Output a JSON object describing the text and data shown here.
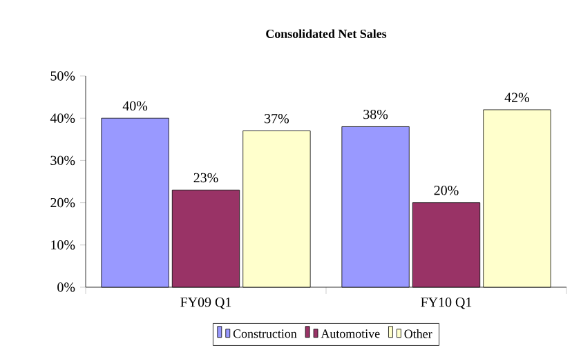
{
  "chart_data": {
    "type": "bar",
    "title": "Consolidated Net Sales",
    "categories": [
      "FY09 Q1",
      "FY10 Q1"
    ],
    "series": [
      {
        "name": "Construction",
        "color": "#9999ff",
        "values": [
          40,
          38
        ],
        "value_labels": [
          "40%",
          "38%"
        ]
      },
      {
        "name": "Automotive",
        "color": "#993366",
        "values": [
          23,
          20
        ],
        "value_labels": [
          "23%",
          "20%"
        ]
      },
      {
        "name": "Other",
        "color": "#ffffcc",
        "values": [
          37,
          42
        ],
        "value_labels": [
          "37%",
          "42%"
        ]
      }
    ],
    "ylim": [
      0,
      50
    ],
    "yticks": [
      {
        "value": 0,
        "label": "0%"
      },
      {
        "value": 10,
        "label": "10%"
      },
      {
        "value": 20,
        "label": "20%"
      },
      {
        "value": 30,
        "label": "30%"
      },
      {
        "value": 40,
        "label": "40%"
      },
      {
        "value": 50,
        "label": "50%"
      }
    ],
    "legend": "bottom",
    "grid": false
  }
}
